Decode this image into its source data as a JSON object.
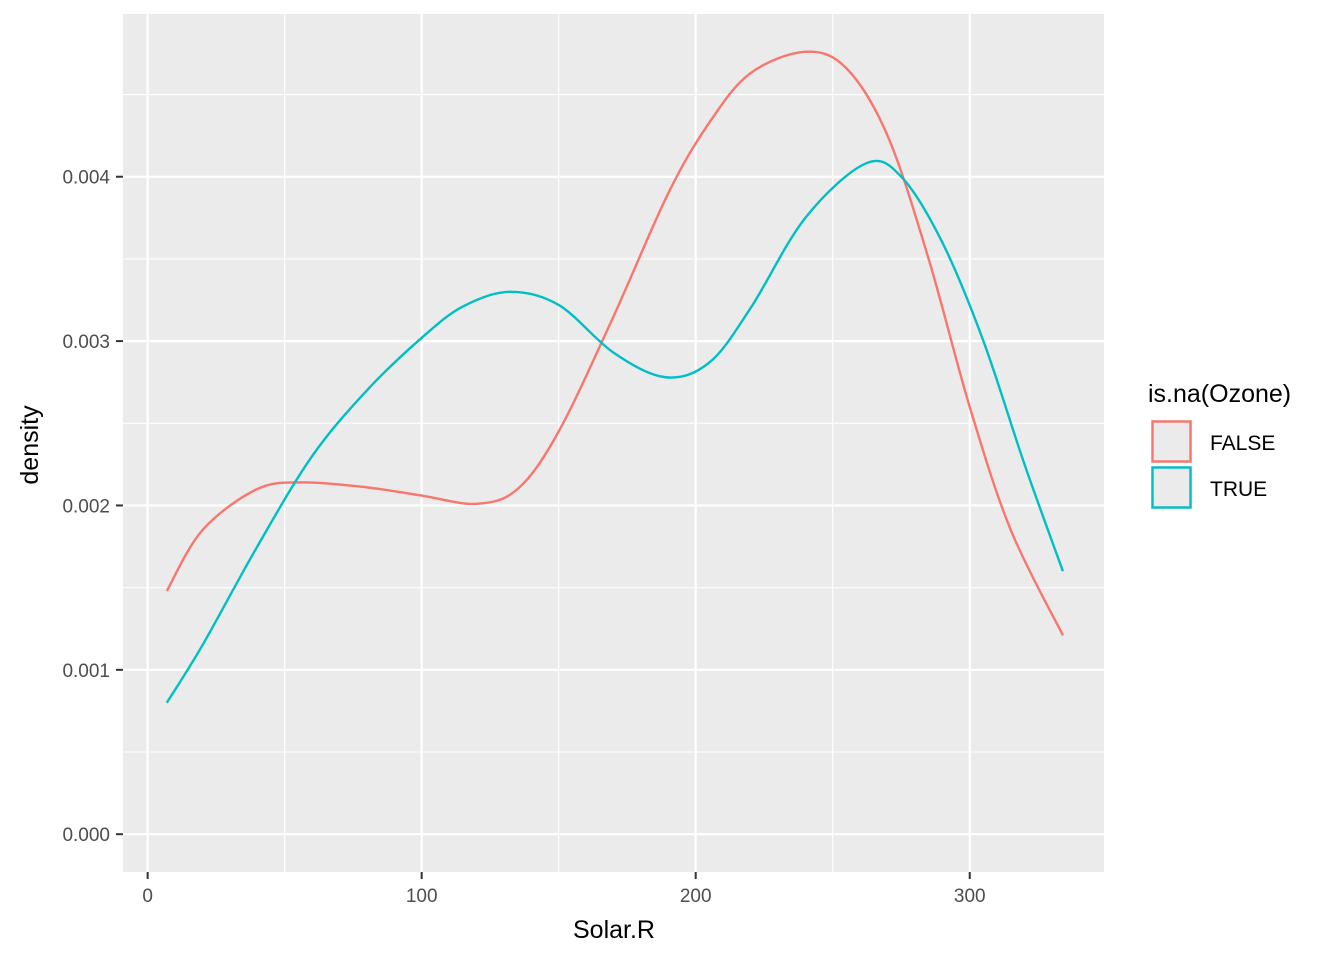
{
  "chart_data": {
    "type": "line",
    "title": "",
    "xlabel": "Solar.R",
    "ylabel": "density",
    "xlim": [
      -9,
      349
    ],
    "ylim": [
      -0.00023,
      0.00499
    ],
    "x_ticks": [
      0,
      100,
      200,
      300
    ],
    "x_tick_labels": [
      "0",
      "100",
      "200",
      "300"
    ],
    "y_ticks": [
      0,
      0.001,
      0.002,
      0.003,
      0.004
    ],
    "y_tick_labels": [
      "0.000",
      "0.001",
      "0.002",
      "0.003",
      "0.004"
    ],
    "grid": true,
    "legend": {
      "title": "is.na(Ozone)",
      "position": "right"
    },
    "series": [
      {
        "name": "FALSE",
        "color": "#F8766D",
        "x": [
          7,
          20,
          40,
          57,
          80,
          100,
          120,
          135,
          150,
          170,
          190,
          205,
          220,
          240,
          255,
          270,
          285,
          300,
          315,
          334
        ],
        "y": [
          0.00148,
          0.00185,
          0.0021,
          0.00214,
          0.00211,
          0.00206,
          0.00201,
          0.0021,
          0.00245,
          0.00315,
          0.0039,
          0.00433,
          0.00463,
          0.00476,
          0.00466,
          0.00425,
          0.0035,
          0.0026,
          0.00185,
          0.00121
        ]
      },
      {
        "name": "TRUE",
        "color": "#00BFC4",
        "x": [
          7,
          20,
          40,
          60,
          80,
          100,
          115,
          132,
          150,
          170,
          189,
          205,
          220,
          240,
          262,
          275,
          290,
          305,
          320,
          334
        ],
        "y": [
          0.0008,
          0.00115,
          0.00175,
          0.0023,
          0.0027,
          0.00302,
          0.00321,
          0.0033,
          0.00322,
          0.00293,
          0.00278,
          0.00287,
          0.0032,
          0.00375,
          0.00408,
          0.004,
          0.0036,
          0.003,
          0.00225,
          0.0016
        ]
      }
    ]
  }
}
